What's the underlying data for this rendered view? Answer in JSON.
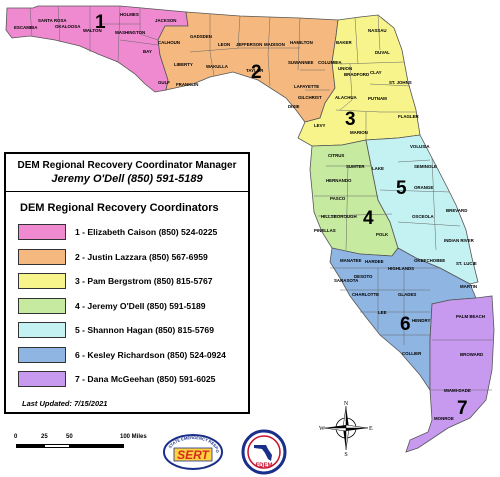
{
  "manager": {
    "title": "DEM Regional Recovery Coordinator Manager",
    "name": "Jeremy O'Dell (850) 591-5189"
  },
  "coordinators": {
    "title": "DEM Regional Recovery Coordinators",
    "items": [
      {
        "label": "1 - Elizabeth Caison (850) 524-0225",
        "color": "#ef8ad0"
      },
      {
        "label": "2 - Justin Lazzara (850) 567-6959",
        "color": "#f5b97f"
      },
      {
        "label": "3 - Pam Bergstrom (850) 815-5767",
        "color": "#f6f48a"
      },
      {
        "label": "4 - Jeremy O'Dell (850) 591-5189",
        "color": "#c6eaa0"
      },
      {
        "label": "5 - Shannon Hagan (850) 815-5769",
        "color": "#c4f2f2"
      },
      {
        "label": "6 - Kesley Richardson (850) 524-0924",
        "color": "#8fb5e3"
      },
      {
        "label": "7 - Dana McGeehan (850) 591-6025",
        "color": "#c79af0"
      }
    ]
  },
  "updated": "Last Updated: 7/15/2021",
  "region_numbers": [
    "1",
    "2",
    "3",
    "4",
    "5",
    "6",
    "7"
  ],
  "scale": {
    "labels": [
      "0",
      "25",
      "50",
      "100 Miles"
    ]
  },
  "compass": {
    "n": "N",
    "s": "S",
    "e": "E",
    "w": "W"
  },
  "logos": {
    "sert_main": "SERT",
    "sert_ring": "STATE EMERGENCY RESPONSE TEAM",
    "fdem": "FDEM"
  },
  "counties": {
    "escambia": "ESCAMBIA",
    "santa_rosa": "SANTA ROSA",
    "okaloosa": "OKALOOSA",
    "walton": "WALTON",
    "holmes": "HOLMES",
    "washington": "WASHINGTON",
    "jackson": "JACKSON",
    "bay": "BAY",
    "calhoun": "CALHOUN",
    "gulf": "GULF",
    "gadsden": "GADSDEN",
    "leon": "LEON",
    "jefferson": "JEFFERSON",
    "madison": "MADISON",
    "hamilton": "HAMILTON",
    "liberty": "LIBERTY",
    "wakulla": "WAKULLA",
    "taylor": "TAYLOR",
    "suwannee": "SUWANNEE",
    "franklin": "FRANKLIN",
    "lafayette": "LAFAYETTE",
    "dixie": "DIXIE",
    "gilchrist": "GILCHRIST",
    "columbia": "COLUMBIA",
    "baker": "BAKER",
    "nassau": "NASSAU",
    "duval": "DUVAL",
    "union": "UNION",
    "bradford": "BRADFORD",
    "clay": "CLAY",
    "st_johns": "ST. JOHNS",
    "alachua": "ALACHUA",
    "putnam": "PUTNAM",
    "flagler": "FLAGLER",
    "levy": "LEVY",
    "marion": "MARION",
    "volusia": "VOLUSIA",
    "citrus": "CITRUS",
    "sumter": "SUMTER",
    "lake": "LAKE",
    "seminole": "SEMINOLE",
    "hernando": "HERNANDO",
    "orange": "ORANGE",
    "pasco": "PASCO",
    "brevard": "BREVARD",
    "osceola": "OSCEOLA",
    "hillsborough": "HILLSBOROUGH",
    "pinellas": "PINELLAS",
    "polk": "POLK",
    "indian_river": "INDIAN RIVER",
    "manatee": "MANATEE",
    "hardee": "HARDEE",
    "okeechobee": "OKEECHOBEE",
    "st_lucie": "ST. LUCIE",
    "highlands": "HIGHLANDS",
    "sarasota": "SARASOTA",
    "desoto": "DESOTO",
    "martin": "MARTIN",
    "charlotte": "CHARLOTTE",
    "glades": "GLADES",
    "lee": "LEE",
    "hendry": "HENDRY",
    "palm_beach": "PALM BEACH",
    "collier": "COLLIER",
    "broward": "BROWARD",
    "miami_dade": "MIAMI-DADE",
    "monroe": "MONROE"
  }
}
